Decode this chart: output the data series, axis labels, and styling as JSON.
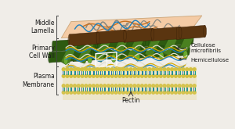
{
  "bg_color": "#f0ede8",
  "labels": {
    "middle_lamella": "Middle\nLamella",
    "primary_cell_wall": "Primary\nCell Wall",
    "plasma_membrane": "Plasma\nMembrane",
    "cellulose_microfibrils": "Cellulose\nmicrofibrils",
    "hemicellulose": "Hemicellulose",
    "pectin": "Pectin"
  },
  "colors": {
    "middle_lamella_fill": "#f5c8a0",
    "middle_lamella_edge": "#c8a070",
    "dark_green": "#2d5a10",
    "mid_green": "#4a8020",
    "light_green": "#6aaa30",
    "brown_cyl": "#5a3510",
    "brown_edge": "#3a2008",
    "blue_line": "#1a80c0",
    "yellow_line": "#d4a800",
    "white_line": "#e8e8e8",
    "mem_head_yellow": "#d4c040",
    "mem_tail_blue": "#2070b0",
    "mem_tail_teal": "#20a080",
    "bracket_color": "#444444",
    "text_color": "#1a1a1a",
    "arrow_color": "#333333",
    "gray_squiggle": "#888880",
    "orange_line": "#c87020"
  },
  "figsize": [
    3.0,
    1.65
  ],
  "dpi": 100
}
